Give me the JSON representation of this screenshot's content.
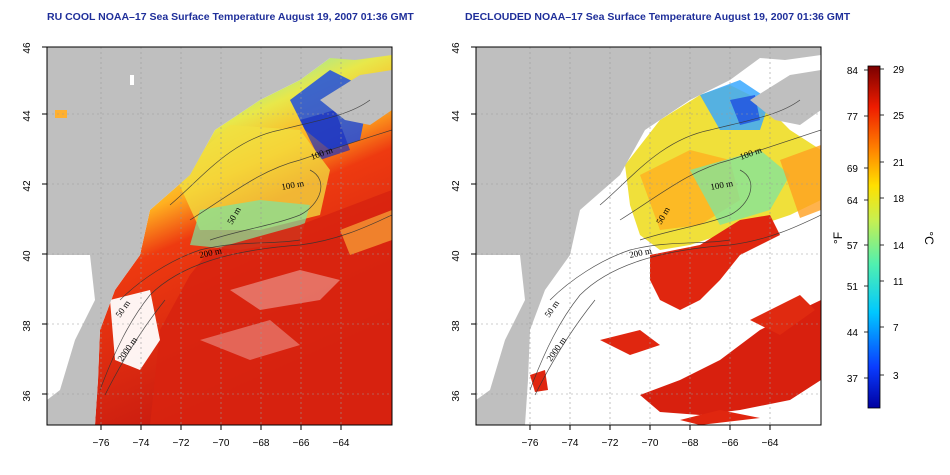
{
  "panels": [
    {
      "title": "RU COOL NOAA–17 Sea Surface Temperature August 19, 2007 01:36 GMT",
      "lat_ticks": [
        "46",
        "44",
        "42",
        "40",
        "38",
        "36"
      ],
      "lon_ticks": [
        "−76",
        "−74",
        "−72",
        "−70",
        "−68",
        "−66",
        "−64"
      ],
      "contour_labels": [
        "100 m",
        "100 m",
        "50 m",
        "200 m",
        "50 m",
        "2000 m"
      ]
    },
    {
      "title": "DECLOUDED NOAA–17 Sea Surface Temperature August 19, 2007 01:36 GMT",
      "lat_ticks": [
        "46",
        "44",
        "42",
        "40",
        "38",
        "36"
      ],
      "lon_ticks": [
        "−76",
        "−74",
        "−72",
        "−70",
        "−68",
        "−66",
        "−64"
      ],
      "contour_labels": [
        "100 m",
        "100 m",
        "50 m",
        "200 m",
        "50 m",
        "2000 m"
      ]
    }
  ],
  "colorbar": {
    "fahrenheit_unit": "°F",
    "celsius_unit": "°C",
    "fahrenheit_ticks": [
      "84",
      "77",
      "69",
      "64",
      "57",
      "51",
      "44",
      "37"
    ],
    "celsius_ticks": [
      "29",
      "25",
      "21",
      "18",
      "14",
      "11",
      "7",
      "3"
    ]
  },
  "colors": {
    "land": "#bfbfbf",
    "cloud": "#ffffff",
    "title": "#1f2f9a",
    "warm": "#d42010",
    "cold": "#1a3fd0"
  }
}
